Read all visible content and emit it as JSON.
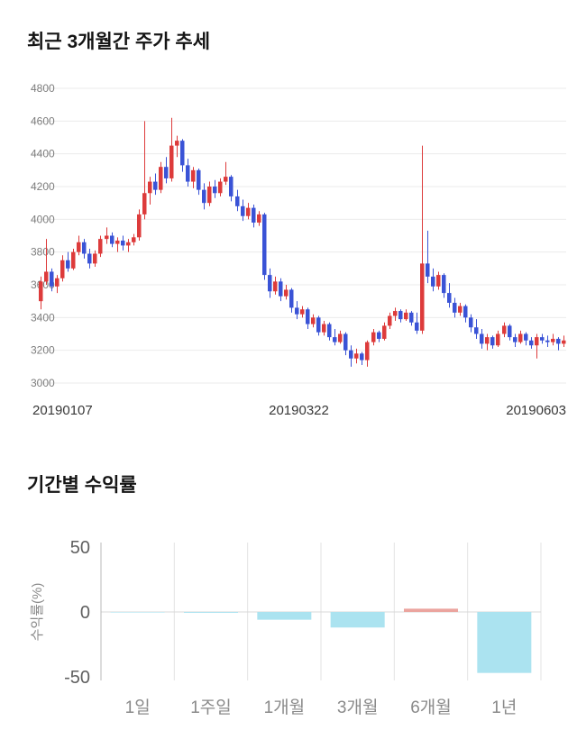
{
  "chart_data": [
    {
      "type": "candlestick",
      "title": "최근 3개월간 주가 추세",
      "ylim": [
        3000,
        4800
      ],
      "y_ticks": [
        4800,
        4600,
        4400,
        4200,
        4000,
        3800,
        3600,
        3400,
        3200,
        3000
      ],
      "x_tick_labels": [
        "20190107",
        "20190322",
        "20190603"
      ],
      "up_color": "#dd3b3b",
      "down_color": "#3a53d6",
      "grid_color": "#ebebeb",
      "candles": [
        [
          3500,
          3650,
          3450,
          3620
        ],
        [
          3620,
          3880,
          3600,
          3680
        ],
        [
          3680,
          3700,
          3560,
          3590
        ],
        [
          3590,
          3660,
          3550,
          3640
        ],
        [
          3640,
          3780,
          3620,
          3750
        ],
        [
          3750,
          3800,
          3680,
          3700
        ],
        [
          3700,
          3820,
          3690,
          3800
        ],
        [
          3800,
          3900,
          3780,
          3860
        ],
        [
          3860,
          3880,
          3760,
          3790
        ],
        [
          3790,
          3820,
          3700,
          3730
        ],
        [
          3730,
          3810,
          3710,
          3790
        ],
        [
          3790,
          3900,
          3770,
          3880
        ],
        [
          3880,
          3950,
          3850,
          3900
        ],
        [
          3900,
          3920,
          3830,
          3850
        ],
        [
          3850,
          3890,
          3800,
          3870
        ],
        [
          3870,
          3900,
          3810,
          3840
        ],
        [
          3840,
          3880,
          3800,
          3860
        ],
        [
          3860,
          3910,
          3840,
          3890
        ],
        [
          3890,
          4060,
          3870,
          4030
        ],
        [
          4030,
          4600,
          4000,
          4160
        ],
        [
          4160,
          4260,
          4090,
          4230
        ],
        [
          4230,
          4280,
          4150,
          4180
        ],
        [
          4180,
          4350,
          4160,
          4320
        ],
        [
          4320,
          4380,
          4220,
          4250
        ],
        [
          4250,
          4620,
          4230,
          4450
        ],
        [
          4450,
          4510,
          4380,
          4480
        ],
        [
          4480,
          4490,
          4290,
          4330
        ],
        [
          4330,
          4370,
          4200,
          4230
        ],
        [
          4230,
          4320,
          4190,
          4300
        ],
        [
          4300,
          4310,
          4150,
          4180
        ],
        [
          4180,
          4220,
          4060,
          4100
        ],
        [
          4100,
          4230,
          4080,
          4200
        ],
        [
          4200,
          4240,
          4130,
          4160
        ],
        [
          4160,
          4250,
          4140,
          4230
        ],
        [
          4230,
          4350,
          4210,
          4260
        ],
        [
          4260,
          4270,
          4110,
          4140
        ],
        [
          4140,
          4180,
          4050,
          4080
        ],
        [
          4080,
          4120,
          3990,
          4020
        ],
        [
          4020,
          4100,
          4000,
          4070
        ],
        [
          4070,
          4090,
          3950,
          3980
        ],
        [
          3980,
          4050,
          3960,
          4030
        ],
        [
          4030,
          4040,
          3630,
          3660
        ],
        [
          3660,
          3700,
          3520,
          3560
        ],
        [
          3560,
          3650,
          3540,
          3620
        ],
        [
          3620,
          3640,
          3500,
          3530
        ],
        [
          3530,
          3600,
          3510,
          3570
        ],
        [
          3570,
          3580,
          3430,
          3460
        ],
        [
          3460,
          3500,
          3390,
          3420
        ],
        [
          3420,
          3470,
          3400,
          3450
        ],
        [
          3450,
          3460,
          3330,
          3360
        ],
        [
          3360,
          3420,
          3340,
          3400
        ],
        [
          3400,
          3410,
          3290,
          3310
        ],
        [
          3310,
          3380,
          3290,
          3360
        ],
        [
          3360,
          3370,
          3260,
          3280
        ],
        [
          3280,
          3330,
          3230,
          3250
        ],
        [
          3250,
          3320,
          3240,
          3300
        ],
        [
          3300,
          3310,
          3170,
          3200
        ],
        [
          3200,
          3230,
          3100,
          3150
        ],
        [
          3150,
          3210,
          3120,
          3180
        ],
        [
          3180,
          3190,
          3110,
          3140
        ],
        [
          3140,
          3260,
          3100,
          3250
        ],
        [
          3250,
          3330,
          3230,
          3310
        ],
        [
          3310,
          3320,
          3250,
          3270
        ],
        [
          3270,
          3370,
          3260,
          3350
        ],
        [
          3350,
          3430,
          3330,
          3410
        ],
        [
          3410,
          3460,
          3380,
          3440
        ],
        [
          3440,
          3450,
          3370,
          3390
        ],
        [
          3390,
          3450,
          3380,
          3430
        ],
        [
          3430,
          3440,
          3350,
          3370
        ],
        [
          3370,
          3430,
          3300,
          3320
        ],
        [
          3320,
          4450,
          3300,
          3730
        ],
        [
          3730,
          3930,
          3610,
          3650
        ],
        [
          3650,
          3700,
          3560,
          3590
        ],
        [
          3590,
          3680,
          3570,
          3660
        ],
        [
          3660,
          3670,
          3520,
          3550
        ],
        [
          3550,
          3610,
          3460,
          3490
        ],
        [
          3490,
          3520,
          3400,
          3430
        ],
        [
          3430,
          3490,
          3410,
          3470
        ],
        [
          3470,
          3480,
          3370,
          3400
        ],
        [
          3400,
          3420,
          3310,
          3340
        ],
        [
          3340,
          3390,
          3270,
          3300
        ],
        [
          3300,
          3330,
          3210,
          3240
        ],
        [
          3240,
          3300,
          3200,
          3280
        ],
        [
          3280,
          3290,
          3210,
          3230
        ],
        [
          3230,
          3320,
          3220,
          3300
        ],
        [
          3300,
          3370,
          3280,
          3350
        ],
        [
          3350,
          3360,
          3260,
          3280
        ],
        [
          3280,
          3300,
          3220,
          3250
        ],
        [
          3250,
          3320,
          3240,
          3300
        ],
        [
          3300,
          3310,
          3230,
          3260
        ],
        [
          3260,
          3280,
          3210,
          3230
        ],
        [
          3230,
          3300,
          3150,
          3280
        ],
        [
          3280,
          3300,
          3240,
          3260
        ],
        [
          3260,
          3290,
          3220,
          3250
        ],
        [
          3250,
          3300,
          3230,
          3270
        ],
        [
          3270,
          3280,
          3200,
          3240
        ],
        [
          3240,
          3290,
          3220,
          3260
        ]
      ]
    },
    {
      "type": "bar",
      "title": "기간별 수익률",
      "ylabel": "수익률(%)",
      "ylim": [
        -50,
        50
      ],
      "y_ticks": [
        50,
        0,
        -50
      ],
      "categories": [
        "1일",
        "1주일",
        "1개월",
        "3개월",
        "6개월",
        "1년"
      ],
      "values": [
        -0.2,
        -0.7,
        -6,
        -12,
        2.5,
        -47
      ],
      "neg_color": "#abe3f0",
      "pos_color": "#eba49e",
      "grid_color": "#e3e3e3",
      "axis_color": "#b9b9b9",
      "zero_color": "#d8d8d8"
    }
  ]
}
